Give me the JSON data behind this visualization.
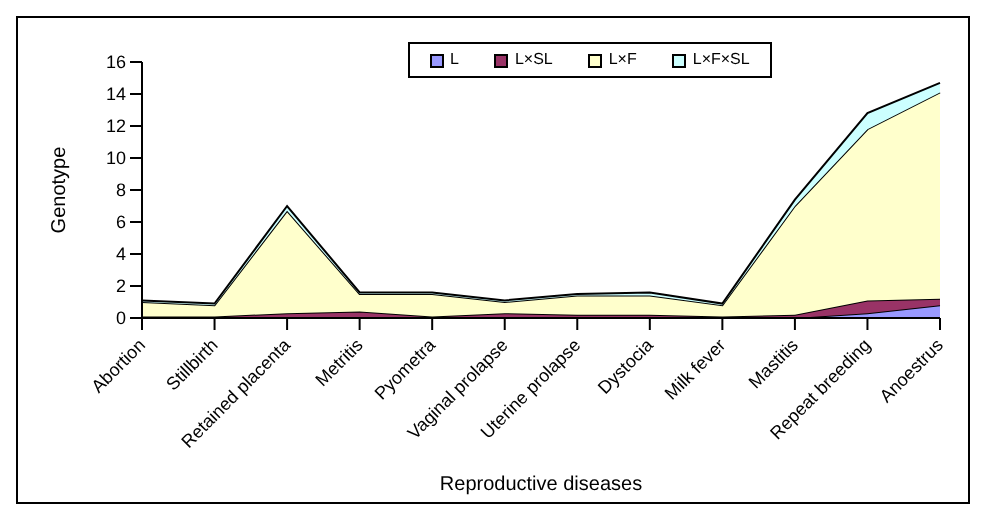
{
  "chart_data": {
    "type": "area",
    "stacked": true,
    "xlabel": "Reproductive diseases",
    "ylabel": "Genotype",
    "categories": [
      "Abortion",
      "Stillbirth",
      "Retained placenta",
      "Metritis",
      "Pyometra",
      "Vaginal prolapse",
      "Uterine prolapse",
      "Dystocia",
      "Milk fever",
      "Mastitis",
      "Repeat breeding",
      "Anoestrus"
    ],
    "series": [
      {
        "name": "L",
        "color": "#9999ff",
        "values": [
          0,
          0,
          0,
          0,
          0,
          0,
          0,
          0,
          0,
          0,
          0.3,
          0.8
        ]
      },
      {
        "name": "L×SL",
        "color": "#993366",
        "values": [
          0.1,
          0.1,
          0.3,
          0.4,
          0.1,
          0.3,
          0.2,
          0.2,
          0.1,
          0.2,
          0.8,
          0.4
        ]
      },
      {
        "name": "L×F",
        "color": "#ffffcc",
        "values": [
          0.9,
          0.7,
          6.4,
          1.1,
          1.4,
          0.7,
          1.2,
          1.2,
          0.7,
          6.8,
          10.7,
          12.9
        ]
      },
      {
        "name": "L×F×SL",
        "color": "#ccffff",
        "values": [
          0.1,
          0.1,
          0.3,
          0.1,
          0.1,
          0.1,
          0.1,
          0.2,
          0.1,
          0.4,
          1.0,
          0.6
        ]
      }
    ],
    "ylim": [
      0,
      16
    ],
    "yticks": [
      0,
      2,
      4,
      6,
      8,
      10,
      12,
      14,
      16
    ],
    "grid": false,
    "legend": "top"
  }
}
